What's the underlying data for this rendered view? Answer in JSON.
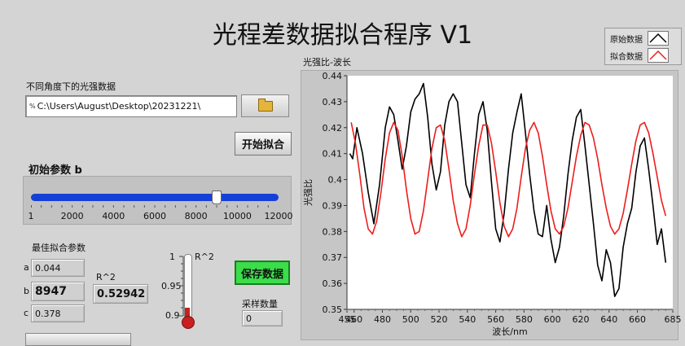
{
  "title": "光程差数据拟合程序 V1",
  "file_section": {
    "label": "不同角度下的光强数据",
    "path_prefix": "%",
    "path_value": "C:\\Users\\August\\Desktop\\20231221\\"
  },
  "start_button": "开始拟合",
  "initial_param": {
    "label": "初始参数 b",
    "min": 1,
    "max": 12000,
    "value": 8947,
    "ticks": [
      "1",
      "2000",
      "4000",
      "6000",
      "8000",
      "10000",
      "12000"
    ],
    "tick_values": [
      1,
      2000,
      4000,
      6000,
      8000,
      10000,
      12000
    ]
  },
  "best_fit": {
    "label": "最佳拟合参数",
    "a_label": "a",
    "a_value": "0.044",
    "b_label": "b",
    "b_value": "8947",
    "c_label": "c",
    "c_value": "0.378"
  },
  "r2": {
    "label": "R^2",
    "value": "0.52942"
  },
  "gauge": {
    "label": "R^2",
    "ticks": [
      "1",
      "0.95",
      "0.9"
    ],
    "value": 0.9
  },
  "save_button": "保存数据",
  "sample": {
    "label": "采样数量",
    "value": "0"
  },
  "legend": {
    "items": [
      {
        "label": "原始数据",
        "color": "#000000"
      },
      {
        "label": "拟合数据",
        "color": "#ee1c1c"
      }
    ]
  },
  "chart_data": {
    "type": "line",
    "title": "光强比-波长",
    "xlabel": "波长/nm",
    "ylabel": "光强比",
    "xlim": [
      455,
      685
    ],
    "ylim": [
      0.35,
      0.44
    ],
    "xticks": [
      455,
      460,
      480,
      500,
      520,
      540,
      560,
      580,
      600,
      620,
      640,
      660,
      685
    ],
    "yticks": [
      0.35,
      0.36,
      0.37,
      0.38,
      0.39,
      0.4,
      0.41,
      0.42,
      0.43,
      0.44
    ],
    "series": [
      {
        "name": "原始数据",
        "color": "#000000",
        "x": [
          457,
          459,
          462,
          466,
          470,
          474,
          478,
          482,
          485,
          488,
          491,
          494,
          497,
          500,
          503,
          506,
          509,
          512,
          515,
          518,
          521,
          524,
          527,
          530,
          533,
          536,
          539,
          542,
          545,
          548,
          551,
          554,
          557,
          560,
          563,
          566,
          569,
          572,
          575,
          578,
          581,
          584,
          587,
          590,
          593,
          596,
          599,
          602,
          605,
          608,
          611,
          614,
          617,
          620,
          623,
          626,
          629,
          632,
          635,
          638,
          641,
          644,
          647,
          650,
          653,
          656,
          659,
          662,
          665,
          668,
          671,
          674,
          677,
          680
        ],
        "y": [
          0.41,
          0.408,
          0.42,
          0.41,
          0.395,
          0.383,
          0.398,
          0.42,
          0.428,
          0.425,
          0.415,
          0.404,
          0.413,
          0.426,
          0.431,
          0.433,
          0.437,
          0.424,
          0.406,
          0.396,
          0.403,
          0.421,
          0.43,
          0.433,
          0.43,
          0.414,
          0.398,
          0.393,
          0.41,
          0.425,
          0.43,
          0.419,
          0.399,
          0.381,
          0.376,
          0.387,
          0.404,
          0.418,
          0.426,
          0.433,
          0.418,
          0.402,
          0.388,
          0.379,
          0.378,
          0.39,
          0.377,
          0.368,
          0.374,
          0.386,
          0.402,
          0.415,
          0.424,
          0.427,
          0.413,
          0.398,
          0.383,
          0.367,
          0.361,
          0.373,
          0.368,
          0.355,
          0.358,
          0.374,
          0.383,
          0.389,
          0.403,
          0.413,
          0.416,
          0.404,
          0.39,
          0.375,
          0.381,
          0.368
        ]
      },
      {
        "name": "拟合数据",
        "color": "#ee1c1c",
        "x": [
          458,
          461,
          464,
          467,
          470,
          473,
          476,
          479,
          482,
          485,
          488,
          491,
          494,
          497,
          500,
          503,
          506,
          509,
          512,
          515,
          518,
          521,
          524,
          527,
          530,
          533,
          536,
          539,
          542,
          545,
          548,
          551,
          554,
          557,
          560,
          563,
          566,
          569,
          572,
          575,
          578,
          581,
          584,
          587,
          590,
          593,
          596,
          599,
          602,
          605,
          608,
          611,
          614,
          617,
          620,
          623,
          626,
          629,
          632,
          635,
          638,
          641,
          644,
          647,
          650,
          653,
          656,
          659,
          662,
          665,
          668,
          671,
          674,
          677,
          680
        ],
        "y": [
          0.422,
          0.414,
          0.402,
          0.389,
          0.381,
          0.379,
          0.384,
          0.395,
          0.408,
          0.418,
          0.422,
          0.419,
          0.409,
          0.396,
          0.385,
          0.379,
          0.38,
          0.388,
          0.4,
          0.412,
          0.42,
          0.421,
          0.415,
          0.404,
          0.392,
          0.383,
          0.378,
          0.381,
          0.39,
          0.402,
          0.413,
          0.421,
          0.421,
          0.414,
          0.403,
          0.391,
          0.382,
          0.378,
          0.381,
          0.389,
          0.401,
          0.412,
          0.419,
          0.422,
          0.418,
          0.409,
          0.398,
          0.388,
          0.381,
          0.379,
          0.382,
          0.389,
          0.399,
          0.409,
          0.417,
          0.422,
          0.421,
          0.416,
          0.408,
          0.398,
          0.389,
          0.382,
          0.379,
          0.381,
          0.387,
          0.396,
          0.406,
          0.415,
          0.421,
          0.422,
          0.418,
          0.41,
          0.401,
          0.392,
          0.386
        ]
      }
    ],
    "grid": false,
    "legend_position": "top-right"
  }
}
